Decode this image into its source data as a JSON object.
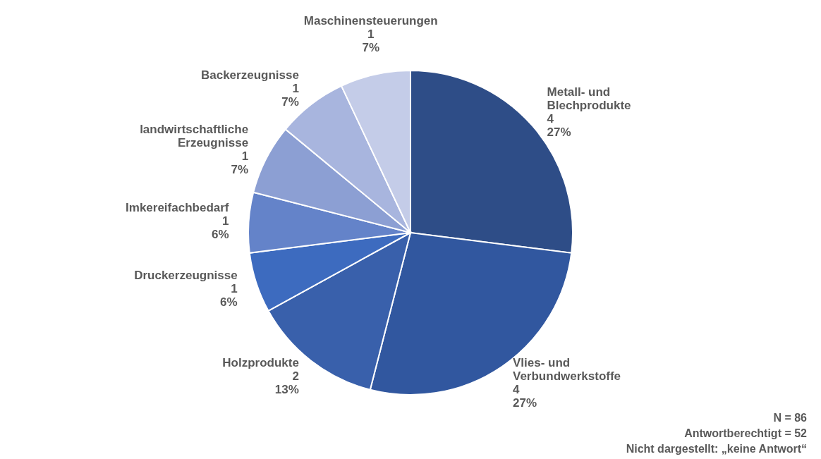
{
  "chart_data": {
    "type": "pie",
    "categories": [
      "Metall- und Blechprodukte",
      "Vlies- und Verbundwerkstoffe",
      "Holzprodukte",
      "Druckerzeugnisse",
      "Imkereifachbedarf",
      "landwirtschaftliche Erzeugnisse",
      "Backerzeugnisse",
      "Maschinensteuerungen"
    ],
    "values": [
      27,
      27,
      13,
      6,
      6,
      7,
      7,
      7
    ],
    "value_labels": [
      "4\n27%",
      "4\n27%",
      "2\n13%",
      "1\n6%",
      "1\n6%",
      "1\n7%",
      "1\n7%",
      "1\n7%"
    ],
    "colors": [
      "#2e4d87",
      "#31579f",
      "#3960ab",
      "#3d6bbf",
      "#6483c9",
      "#8c9fd3",
      "#a8b5de",
      "#c4cce8"
    ],
    "annotations": [
      "N = 86",
      "Antwortberechtigt = 52",
      "Nicht dargestellt: „keine Antwort“"
    ]
  }
}
